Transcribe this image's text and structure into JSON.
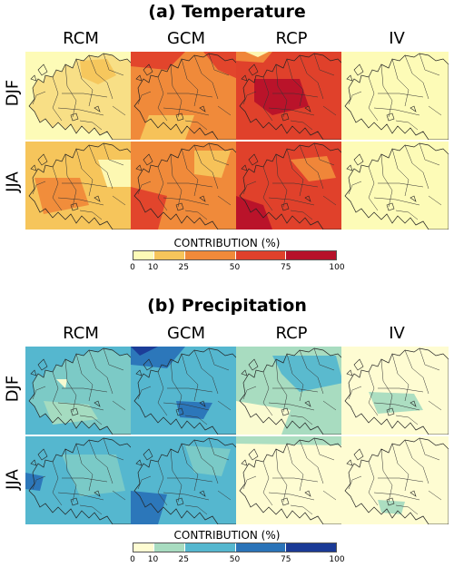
{
  "panels": [
    {
      "title": "(a) Temperature",
      "columns": [
        "RCM",
        "GCM",
        "RCP",
        "IV"
      ],
      "rows": [
        "DJF",
        "JJA"
      ],
      "colorbar_title": "CONTRIBUTION (%)",
      "colorbar_ticks": [
        "0",
        "10",
        "25",
        "50",
        "75",
        "100"
      ],
      "colorbar_colors": [
        "#fdfbb7",
        "#f6c55b",
        "#f08a3a",
        "#e0412b",
        "#b7112a"
      ]
    },
    {
      "title": "(b) Precipitation",
      "columns": [
        "RCM",
        "GCM",
        "RCP",
        "IV"
      ],
      "rows": [
        "DJF",
        "JJA"
      ],
      "colorbar_title": "CONTRIBUTION (%)",
      "colorbar_ticks": [
        "0",
        "10",
        "25",
        "50",
        "75",
        "100"
      ],
      "colorbar_colors": [
        "#fefcd2",
        "#a8dcc0",
        "#55b7cf",
        "#2a73b8",
        "#1b3a96"
      ]
    }
  ]
}
